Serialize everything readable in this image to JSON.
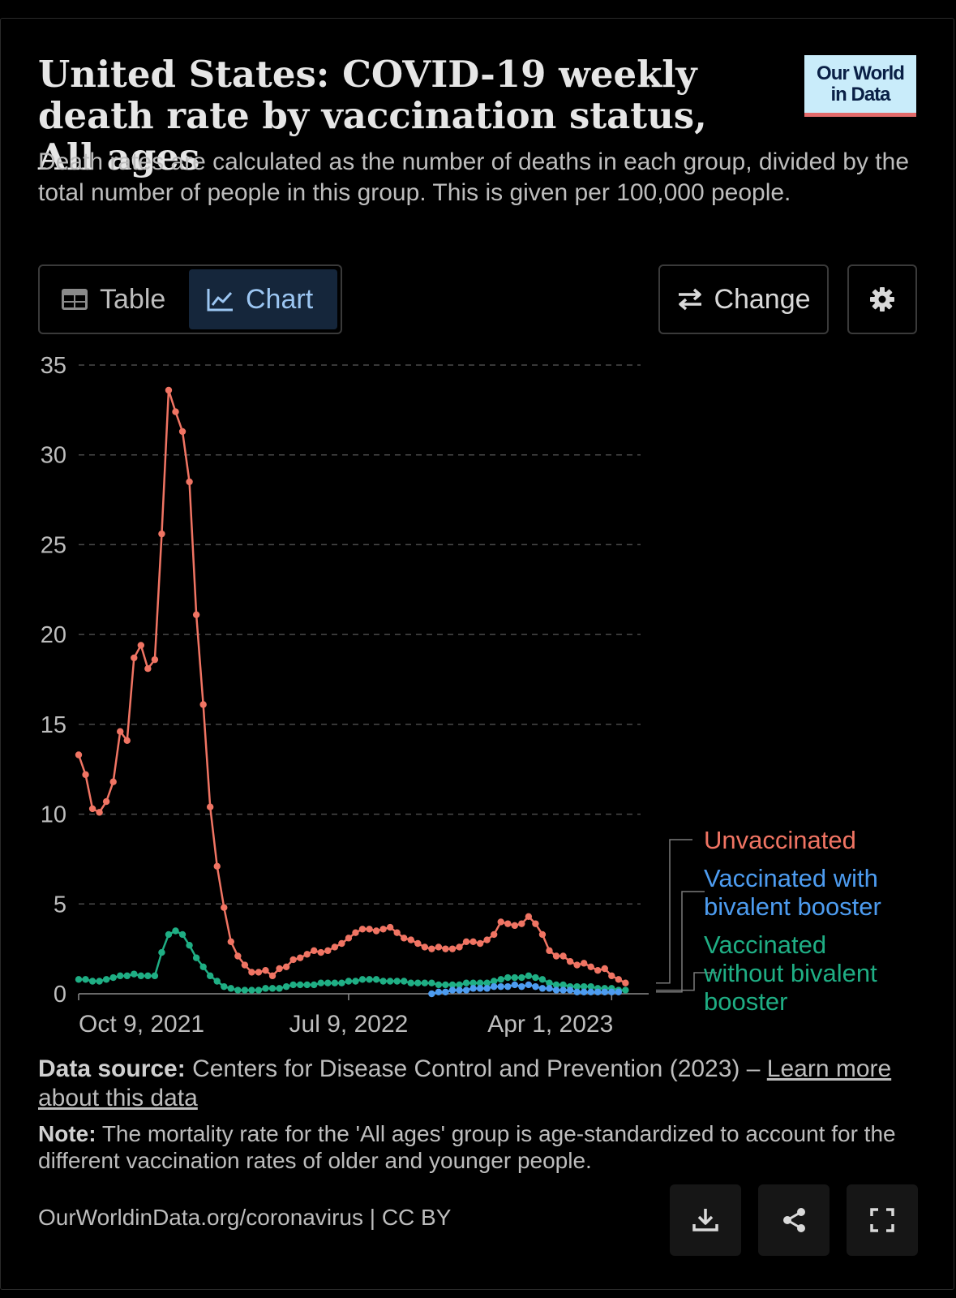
{
  "title": "United States: COVID-19 weekly death rate by vaccination status, All ages",
  "subtitle": "Death rates are calculated as the number of deaths in each group, divided by the total number of people in this group. This is given per 100,000 people.",
  "logo": {
    "line1": "Our World",
    "line2": "in Data"
  },
  "tabs": {
    "table": "Table",
    "chart": "Chart"
  },
  "buttons": {
    "change": "Change"
  },
  "colors": {
    "unvaccinated": "#f07463",
    "bivalent": "#4d9cf0",
    "no_bivalent": "#1fae84",
    "background": "#000000"
  },
  "icons": [
    "table-icon",
    "line-chart-icon",
    "swap-arrows-icon",
    "gear-icon",
    "download-icon",
    "share-icon",
    "fullscreen-icon"
  ],
  "source": {
    "label": "Data source:",
    "text": " Centers for Disease Control and Prevention (2023) – ",
    "link": "Learn more about this data"
  },
  "note": {
    "label": "Note:",
    "text": " The mortality rate for the 'All ages' group is age-standardized to account for the different vaccination rates of older and younger people."
  },
  "footer": "OurWorldinData.org/coronavirus | CC BY",
  "chart_data": {
    "type": "line",
    "ylim": [
      0,
      35
    ],
    "yticks": [
      0,
      5,
      10,
      15,
      20,
      25,
      30,
      35
    ],
    "grid": true,
    "x_range_days": [
      0,
      574
    ],
    "x_ticks": [
      {
        "label": "Oct 9, 2021",
        "day": 0
      },
      {
        "label": "Jul 9, 2022",
        "day": 273
      },
      {
        "label": "Apr 1, 2023",
        "day": 539
      }
    ],
    "legend_position": "right",
    "series": [
      {
        "name": "Unvaccinated",
        "color": "#f07463",
        "start_day": 0,
        "values": [
          13.3,
          12.2,
          10.3,
          10.1,
          10.7,
          11.8,
          14.6,
          14.1,
          18.7,
          19.4,
          18.1,
          18.6,
          25.6,
          33.6,
          32.4,
          31.3,
          28.5,
          21.1,
          16.1,
          10.4,
          7.1,
          4.8,
          2.9,
          2.1,
          1.6,
          1.2,
          1.2,
          1.3,
          1.0,
          1.4,
          1.5,
          1.9,
          2.0,
          2.2,
          2.4,
          2.3,
          2.4,
          2.6,
          2.8,
          3.1,
          3.4,
          3.6,
          3.6,
          3.5,
          3.6,
          3.7,
          3.4,
          3.1,
          3.0,
          2.8,
          2.6,
          2.5,
          2.6,
          2.5,
          2.5,
          2.6,
          2.9,
          2.9,
          2.8,
          3.0,
          3.3,
          4.0,
          3.9,
          3.8,
          3.9,
          4.3,
          3.9,
          3.3,
          2.4,
          2.1,
          2.1,
          1.8,
          1.6,
          1.7,
          1.5,
          1.3,
          1.4,
          1.0,
          0.8,
          0.6
        ]
      },
      {
        "name": "Vaccinated with bivalent booster",
        "color": "#4d9cf0",
        "start_day": 357,
        "values": [
          0.0,
          0.1,
          0.1,
          0.2,
          0.2,
          0.2,
          0.3,
          0.3,
          0.3,
          0.4,
          0.4,
          0.4,
          0.5,
          0.4,
          0.5,
          0.4,
          0.3,
          0.3,
          0.2,
          0.2,
          0.2,
          0.1,
          0.1,
          0.1,
          0.1,
          0.1,
          0.1,
          0.1
        ]
      },
      {
        "name": "Vaccinated without bivalent booster",
        "color": "#1fae84",
        "start_day": 0,
        "values": [
          0.8,
          0.8,
          0.7,
          0.7,
          0.8,
          0.9,
          1.0,
          1.0,
          1.1,
          1.0,
          1.0,
          1.0,
          2.3,
          3.3,
          3.5,
          3.3,
          2.7,
          2.0,
          1.5,
          1.0,
          0.7,
          0.4,
          0.3,
          0.2,
          0.2,
          0.2,
          0.2,
          0.3,
          0.3,
          0.3,
          0.4,
          0.5,
          0.5,
          0.5,
          0.5,
          0.6,
          0.6,
          0.6,
          0.6,
          0.7,
          0.7,
          0.8,
          0.8,
          0.8,
          0.7,
          0.7,
          0.7,
          0.7,
          0.6,
          0.6,
          0.6,
          0.6,
          0.5,
          0.5,
          0.5,
          0.5,
          0.6,
          0.6,
          0.6,
          0.6,
          0.7,
          0.8,
          0.9,
          0.9,
          0.9,
          1.0,
          0.9,
          0.8,
          0.6,
          0.5,
          0.5,
          0.4,
          0.4,
          0.4,
          0.4,
          0.3,
          0.3,
          0.3,
          0.2,
          0.2
        ]
      }
    ]
  }
}
